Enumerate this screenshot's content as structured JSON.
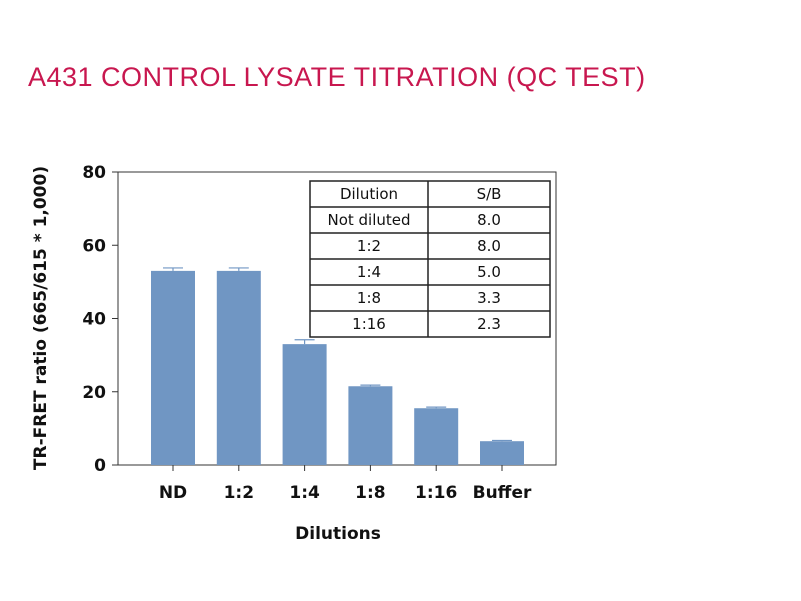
{
  "title": "A431 CONTROL LYSATE TITRATION (QC TEST)",
  "chart_data": {
    "type": "bar",
    "xlabel": "Dilutions",
    "ylabel": "TR-FRET ratio (665/615 * 1,000)",
    "ylim": [
      0,
      80
    ],
    "yticks": [
      0,
      20,
      40,
      60,
      80
    ],
    "categories": [
      "ND",
      "1:2",
      "1:4",
      "1:8",
      "1:16",
      "Buffer"
    ],
    "values": [
      53,
      53,
      33,
      21.5,
      15.5,
      6.5
    ],
    "errors": [
      0.8,
      0.8,
      1.2,
      0.3,
      0.3,
      0.2
    ],
    "bar_color": "#7096c3",
    "table": {
      "headers": [
        "Dilution",
        "S/B"
      ],
      "rows": [
        [
          "Not diluted",
          "8.0"
        ],
        [
          "1:2",
          "8.0"
        ],
        [
          "1:4",
          "5.0"
        ],
        [
          "1:8",
          "3.3"
        ],
        [
          "1:16",
          "2.3"
        ]
      ]
    }
  }
}
